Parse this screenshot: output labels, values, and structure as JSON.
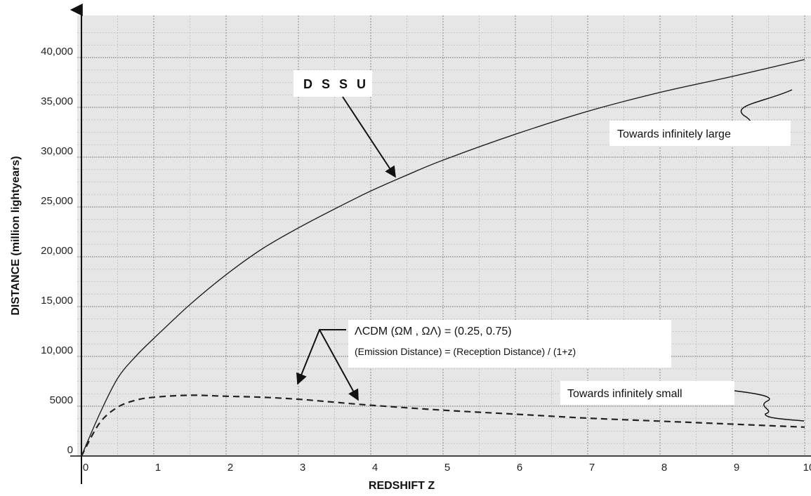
{
  "chart_data": {
    "type": "line",
    "title": "",
    "xlabel": "REDSHIFT  Z",
    "ylabel": "DISTANCE   (million lightyears)",
    "xlim": [
      0,
      10
    ],
    "ylim": [
      0,
      40000
    ],
    "x_ticks": [
      "0",
      "1",
      "2",
      "3",
      "4",
      "5",
      "6",
      "7",
      "8",
      "9",
      "10"
    ],
    "y_ticks": [
      {
        "value": 0,
        "label": "0"
      },
      {
        "value": 5000,
        "label": "5000"
      },
      {
        "value": 10000,
        "label": "10,000"
      },
      {
        "value": 15000,
        "label": "15,000"
      },
      {
        "value": 20000,
        "label": "20,000"
      },
      {
        "value": 25000,
        "label": "25,000"
      },
      {
        "value": 30000,
        "label": "30,000"
      },
      {
        "value": 35000,
        "label": "35,000"
      },
      {
        "value": 40000,
        "label": "40,000"
      }
    ],
    "grid": true,
    "series": [
      {
        "name": "D S S U",
        "style": "solid",
        "x": [
          0,
          0.25,
          0.5,
          0.75,
          1,
          1.5,
          2,
          2.5,
          3,
          3.5,
          4,
          4.5,
          5,
          6,
          7,
          8,
          9,
          10
        ],
        "values": [
          0,
          4200,
          7800,
          10000,
          11800,
          15200,
          18200,
          20800,
          22900,
          24800,
          26600,
          28200,
          29700,
          32300,
          34600,
          36500,
          38100,
          39800
        ]
      },
      {
        "name": "ΛCDM (ΩM , ΩΛ) = (0.25, 0.75)",
        "style": "dashed",
        "x": [
          0,
          0.25,
          0.5,
          0.75,
          1,
          1.5,
          2,
          2.5,
          3,
          3.5,
          4,
          5,
          6,
          7,
          8,
          9,
          10
        ],
        "values": [
          0,
          3300,
          4900,
          5600,
          5900,
          6100,
          6000,
          5900,
          5700,
          5400,
          5100,
          4600,
          4200,
          3800,
          3500,
          3200,
          2900
        ]
      }
    ],
    "annotations": {
      "dssu": "D S S U",
      "lcdm": "ΛCDM (ΩM , ΩΛ) = (0.25, 0.75)",
      "emission": "(Emission Distance) = (Reception Distance) / (1+z)",
      "large": "Towards infinitely large",
      "small": "Towards infinitely small"
    }
  }
}
